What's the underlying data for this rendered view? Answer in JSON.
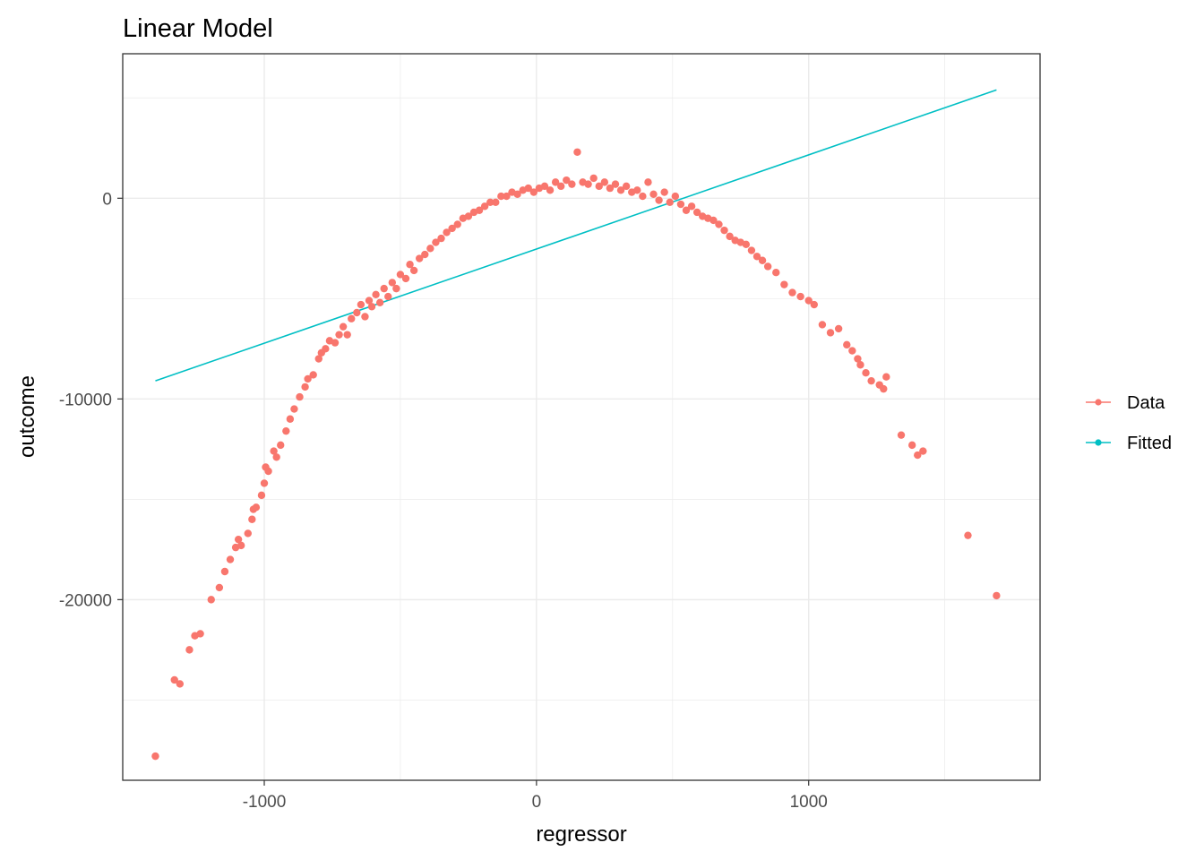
{
  "chart_data": {
    "type": "scatter",
    "title": "Linear Model",
    "xlabel": "regressor",
    "ylabel": "outcome",
    "xlim": [
      -1520,
      1850
    ],
    "ylim": [
      -29000,
      7200
    ],
    "x_ticks": [
      -1000,
      0,
      1000
    ],
    "x_tick_labels": [
      "-1000",
      "0",
      "1000"
    ],
    "y_ticks": [
      -20000,
      -10000,
      0
    ],
    "y_tick_labels": [
      "-20000",
      "-10000",
      "0"
    ],
    "x_minor_grid": [
      -500,
      500,
      1500
    ],
    "y_minor_grid": [
      -25000,
      -15000,
      -5000,
      5000
    ],
    "grid": true,
    "legend_position": "right",
    "colors": {
      "Data": "#F8766D",
      "Fitted": "#00BFC4",
      "grid": "#ebebeb",
      "panel_border": "#333333"
    },
    "series": [
      {
        "name": "Data",
        "kind": "points",
        "x": [
          -1400,
          -1330,
          -1310,
          -1275,
          -1255,
          -1235,
          -1195,
          -1165,
          -1145,
          -1125,
          -1105,
          -1095,
          -1085,
          -1060,
          -1045,
          -1040,
          -1030,
          -1010,
          -1000,
          -995,
          -985,
          -965,
          -955,
          -940,
          -920,
          -905,
          -890,
          -870,
          -850,
          -840,
          -820,
          -800,
          -790,
          -775,
          -760,
          -740,
          -725,
          -710,
          -695,
          -680,
          -660,
          -645,
          -630,
          -615,
          -605,
          -590,
          -575,
          -560,
          -545,
          -530,
          -515,
          -500,
          -480,
          -465,
          -450,
          -430,
          -410,
          -390,
          -370,
          -350,
          -330,
          -310,
          -290,
          -270,
          -250,
          -230,
          -210,
          -190,
          -170,
          -150,
          -130,
          -110,
          -90,
          -70,
          -50,
          -30,
          -10,
          10,
          30,
          50,
          70,
          90,
          110,
          130,
          150,
          170,
          190,
          210,
          230,
          250,
          270,
          290,
          310,
          330,
          350,
          370,
          390,
          410,
          430,
          450,
          470,
          490,
          510,
          530,
          550,
          570,
          590,
          610,
          630,
          650,
          670,
          690,
          710,
          730,
          750,
          770,
          790,
          810,
          830,
          850,
          880,
          910,
          940,
          970,
          1000,
          1020,
          1050,
          1080,
          1110,
          1140,
          1160,
          1180,
          1190,
          1210,
          1230,
          1260,
          1275,
          1285,
          1340,
          1380,
          1400,
          1420,
          1585,
          1690
        ],
        "y": [
          -27800,
          -24000,
          -24200,
          -22500,
          -21800,
          -21700,
          -20000,
          -19400,
          -18600,
          -18000,
          -17400,
          -17000,
          -17300,
          -16700,
          -16000,
          -15500,
          -15400,
          -14800,
          -14200,
          -13400,
          -13600,
          -12600,
          -12900,
          -12300,
          -11600,
          -11000,
          -10500,
          -9900,
          -9400,
          -9000,
          -8800,
          -8000,
          -7700,
          -7500,
          -7100,
          -7200,
          -6800,
          -6400,
          -6800,
          -6000,
          -5700,
          -5300,
          -5900,
          -5100,
          -5400,
          -4800,
          -5200,
          -4500,
          -4900,
          -4200,
          -4500,
          -3800,
          -4000,
          -3300,
          -3600,
          -3000,
          -2800,
          -2500,
          -2200,
          -2000,
          -1700,
          -1500,
          -1300,
          -1000,
          -900,
          -700,
          -600,
          -400,
          -200,
          -200,
          100,
          100,
          300,
          200,
          400,
          500,
          300,
          500,
          600,
          400,
          800,
          600,
          900,
          700,
          2300,
          800,
          700,
          1000,
          600,
          800,
          500,
          700,
          400,
          600,
          300,
          400,
          100,
          800,
          200,
          -100,
          300,
          -200,
          100,
          -300,
          -600,
          -400,
          -700,
          -900,
          -1000,
          -1100,
          -1300,
          -1600,
          -1900,
          -2100,
          -2200,
          -2300,
          -2600,
          -2900,
          -3100,
          -3400,
          -3700,
          -4300,
          -4700,
          -4900,
          -5100,
          -5300,
          -6300,
          -6700,
          -6500,
          -7300,
          -7600,
          -8000,
          -8300,
          -8700,
          -9100,
          -9300,
          -9500,
          -8900,
          -11800,
          -12300,
          -12800,
          -12600,
          -16800,
          -19800
        ]
      },
      {
        "name": "Fitted",
        "kind": "line",
        "x": [
          -1400,
          1690
        ],
        "y": [
          -9100,
          5400
        ]
      }
    ]
  }
}
